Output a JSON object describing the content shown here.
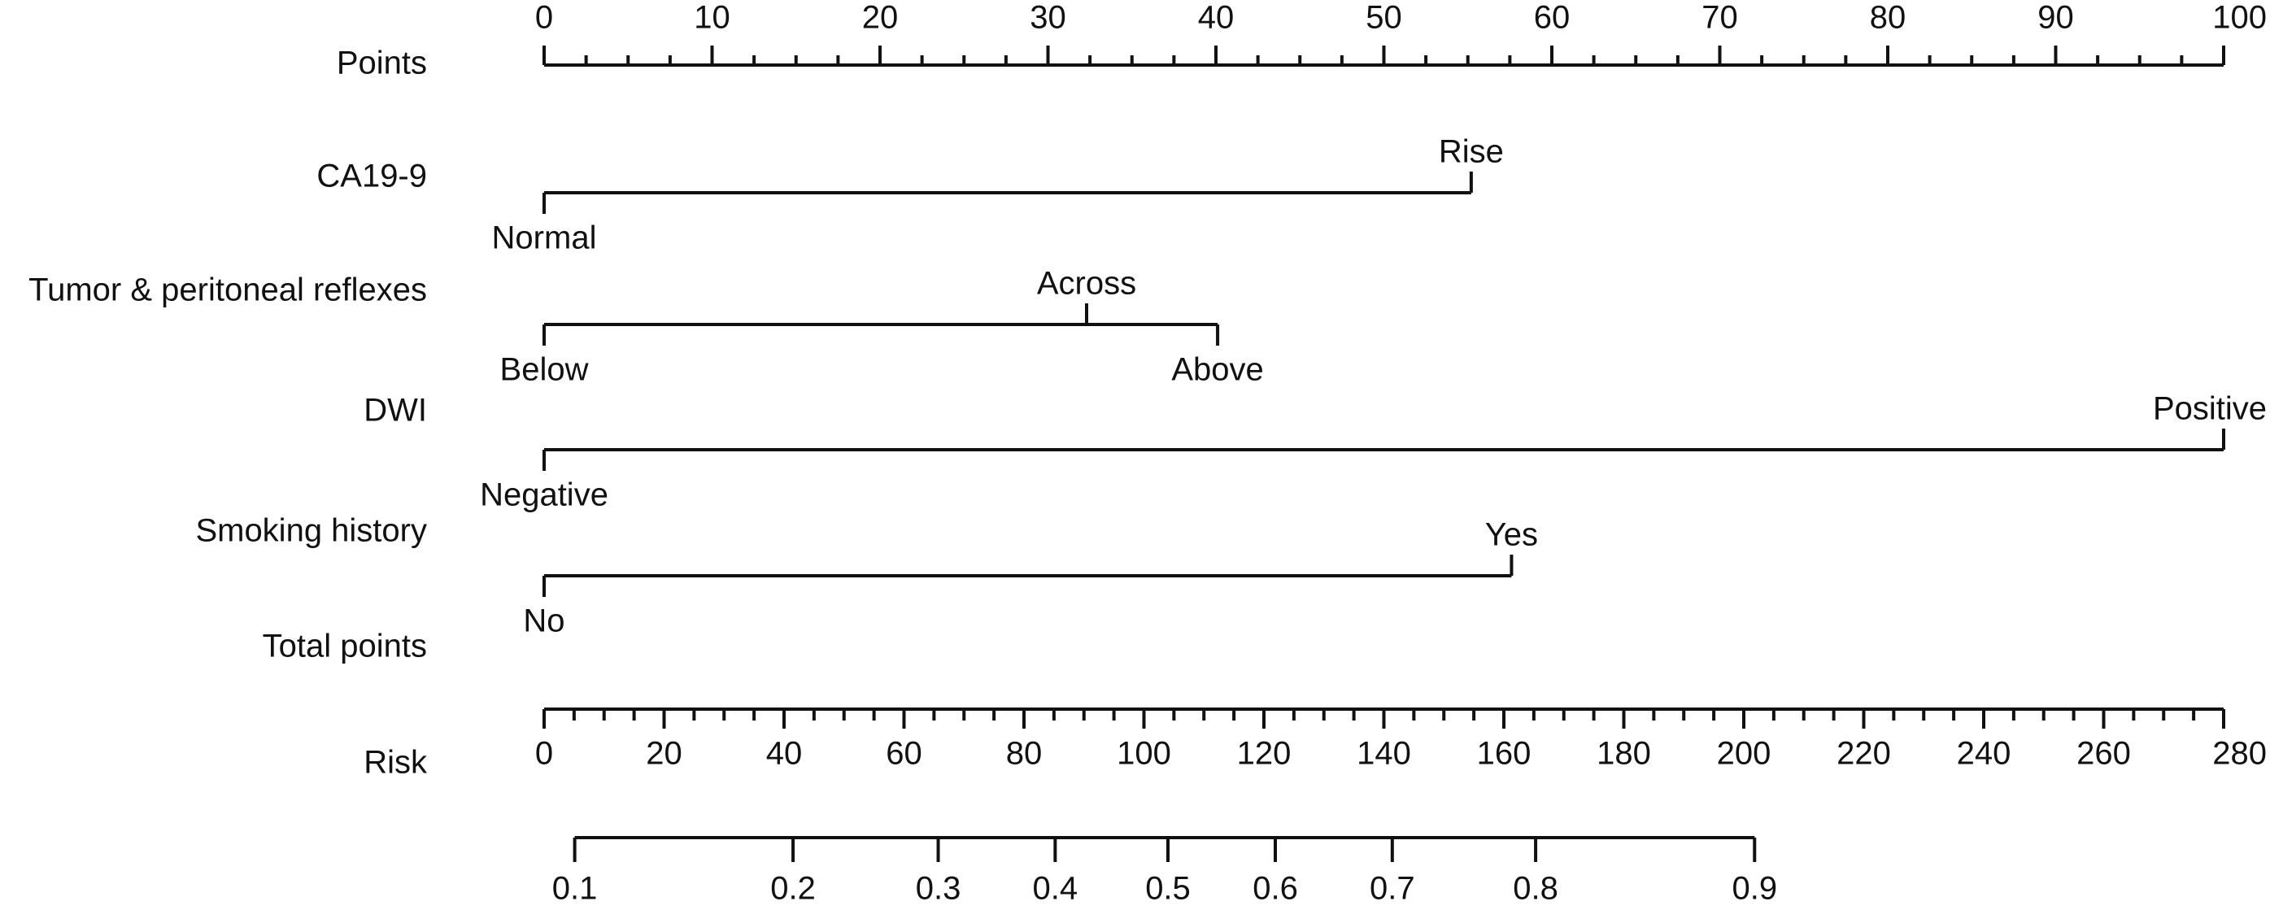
{
  "chart_data": {
    "type": "nomogram",
    "points": {
      "label": "Points",
      "xlim": [
        0,
        100
      ],
      "ticks": [
        0,
        10,
        20,
        30,
        40,
        50,
        60,
        70,
        80,
        90,
        100
      ],
      "minor_step": 2.5
    },
    "variables": [
      {
        "name": "CA19-9",
        "levels": [
          "Normal",
          "Rise"
        ],
        "points": [
          0,
          55.2
        ]
      },
      {
        "name": "Tumor & peritoneal reflexes",
        "levels": [
          "Below",
          "Across",
          "Above"
        ],
        "points": [
          0,
          32.3,
          40.1
        ]
      },
      {
        "name": "DWI",
        "levels": [
          "Negative",
          "Positive"
        ],
        "points": [
          0,
          100
        ]
      },
      {
        "name": "Smoking history",
        "levels": [
          "No",
          "Yes"
        ],
        "points": [
          0,
          57.6
        ]
      }
    ],
    "total_points": {
      "label": "Total points",
      "xlim": [
        0,
        280
      ],
      "ticks": [
        0,
        20,
        40,
        60,
        80,
        100,
        120,
        140,
        160,
        180,
        200,
        220,
        240,
        260,
        280
      ],
      "minor_step": 5
    },
    "risk": {
      "label": "Risk",
      "ticks": [
        0.1,
        0.2,
        0.3,
        0.4,
        0.5,
        0.6,
        0.7,
        0.8,
        0.9
      ],
      "total_points": [
        5.1,
        41.5,
        65.7,
        85.2,
        104,
        121.9,
        141.4,
        165.3,
        201.8
      ]
    }
  }
}
